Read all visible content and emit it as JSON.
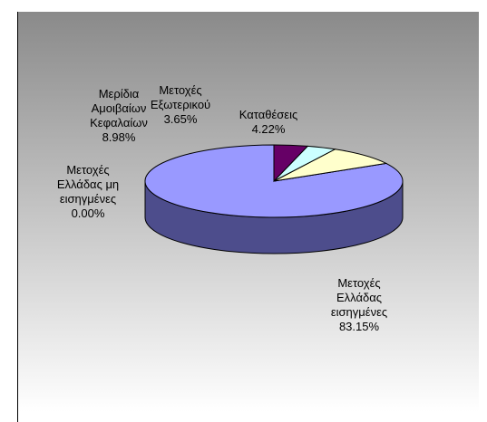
{
  "chart_data": {
    "type": "pie",
    "style": "3d",
    "legend": "none",
    "background": "gradient grey to white",
    "slices": [
      {
        "lines": [
          "Μετοχές",
          "Ελλάδας",
          "εισηγμένες"
        ],
        "pct_label": "83.15%",
        "value": 83.15,
        "color": "#9999ff",
        "side_color": "#4d4d8c"
      },
      {
        "lines": [
          "Μετοχές",
          "Ελλάδας μη",
          "εισηγμένες"
        ],
        "pct_label": "0.00%",
        "value": 0.0,
        "color": "#ffffff",
        "side_color": "#999999"
      },
      {
        "lines": [
          "Μερίδια",
          "Αμοιβαίων",
          "Κεφαλαίων"
        ],
        "pct_label": "8.98%",
        "value": 8.98,
        "color": "#ffffcc",
        "side_color": "#999980"
      },
      {
        "lines": [
          "Μετοχές",
          "Εξωτερικού"
        ],
        "pct_label": "3.65%",
        "value": 3.65,
        "color": "#ccffff",
        "side_color": "#809999"
      },
      {
        "lines": [
          "Καταθέσεις"
        ],
        "pct_label": "4.22%",
        "value": 4.22,
        "color": "#660066",
        "side_color": "#3d003d"
      }
    ]
  }
}
